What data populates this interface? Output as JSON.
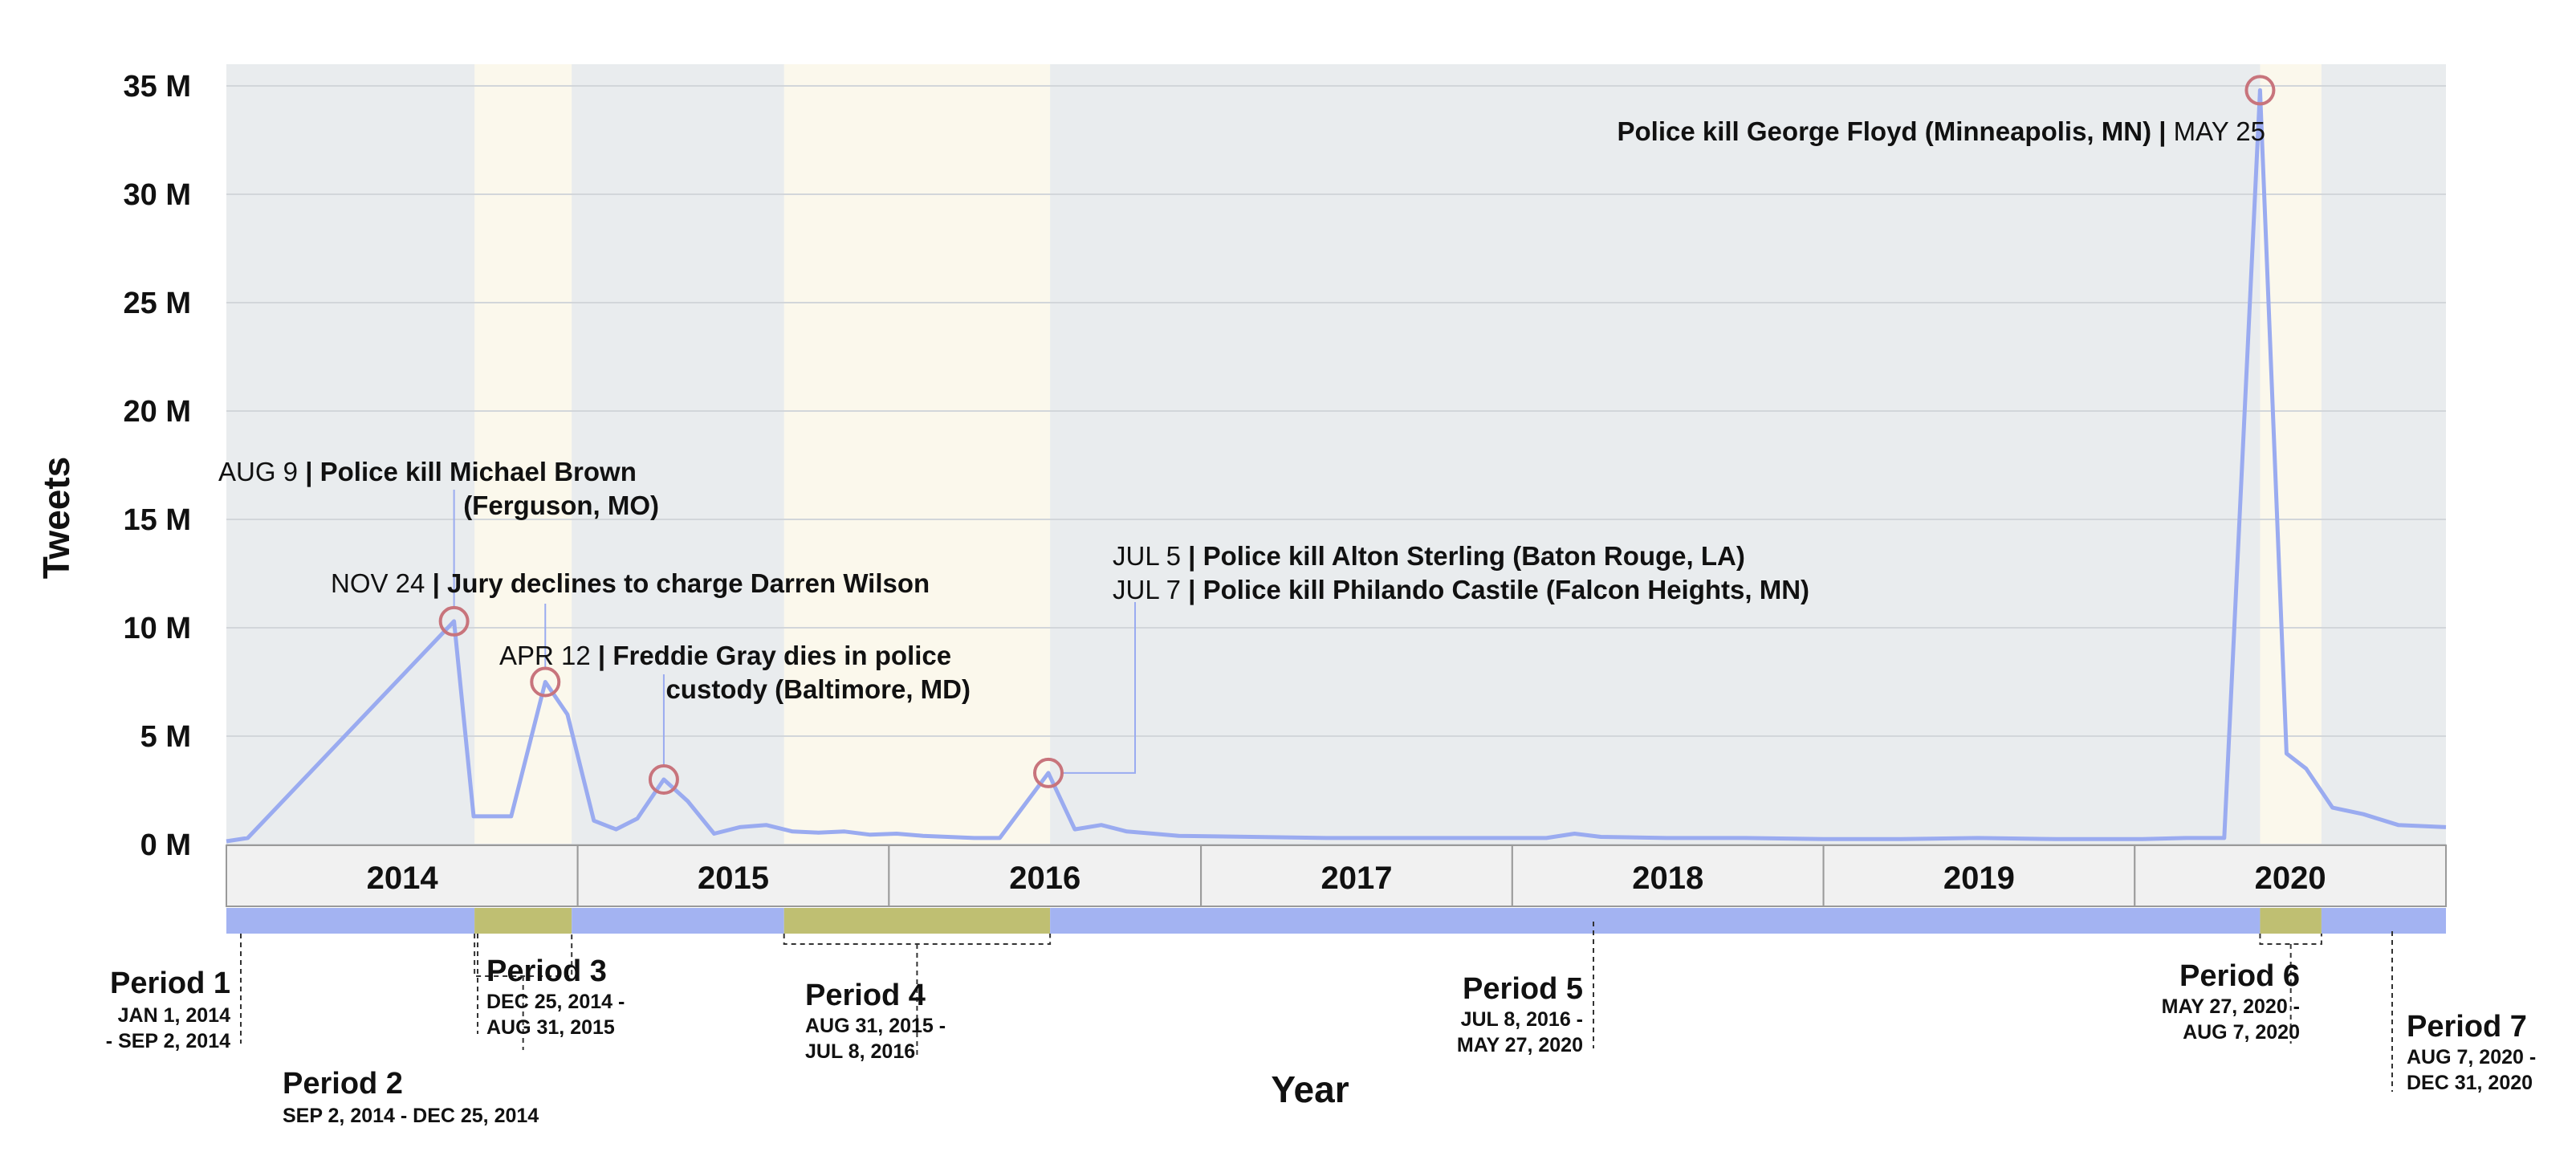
{
  "chart_data": {
    "type": "line",
    "title": "",
    "xlabel": "Year",
    "ylabel": "Tweets",
    "ylim": [
      0,
      36000000
    ],
    "xlim": [
      "2013-11-15",
      "2020-12-31"
    ],
    "y_ticks": [
      {
        "value": 0,
        "label": "0 M"
      },
      {
        "value": 5000000,
        "label": "5 M"
      },
      {
        "value": 10000000,
        "label": "10 M"
      },
      {
        "value": 15000000,
        "label": "15 M"
      },
      {
        "value": 20000000,
        "label": "20 M"
      },
      {
        "value": 25000000,
        "label": "25 M"
      },
      {
        "value": 30000000,
        "label": "30 M"
      },
      {
        "value": 35000000,
        "label": "35 M"
      }
    ],
    "grid": true,
    "line_color": "#9aabf0",
    "series": [
      {
        "name": "",
        "points": [
          [
            "2013-11-15",
            0.15
          ],
          [
            "2013-12-10",
            0.3
          ],
          [
            "2014-08-09",
            10.3
          ],
          [
            "2014-09-01",
            1.3
          ],
          [
            "2014-10-15",
            1.3
          ],
          [
            "2014-11-24",
            7.5
          ],
          [
            "2014-12-20",
            6.0
          ],
          [
            "2015-01-20",
            1.1
          ],
          [
            "2015-02-15",
            0.7
          ],
          [
            "2015-03-12",
            1.2
          ],
          [
            "2015-04-12",
            3.0
          ],
          [
            "2015-05-10",
            2.0
          ],
          [
            "2015-06-10",
            0.5
          ],
          [
            "2015-07-10",
            0.8
          ],
          [
            "2015-08-10",
            0.9
          ],
          [
            "2015-09-10",
            0.6
          ],
          [
            "2015-10-10",
            0.55
          ],
          [
            "2015-11-10",
            0.6
          ],
          [
            "2015-12-10",
            0.45
          ],
          [
            "2016-01-10",
            0.5
          ],
          [
            "2016-02-10",
            0.4
          ],
          [
            "2016-03-10",
            0.35
          ],
          [
            "2016-04-10",
            0.3
          ],
          [
            "2016-05-10",
            0.3
          ],
          [
            "2016-07-06",
            3.3
          ],
          [
            "2016-08-06",
            0.7
          ],
          [
            "2016-09-06",
            0.9
          ],
          [
            "2016-10-06",
            0.6
          ],
          [
            "2016-11-06",
            0.5
          ],
          [
            "2016-12-06",
            0.4
          ],
          [
            "2017-03-01",
            0.35
          ],
          [
            "2017-06-01",
            0.3
          ],
          [
            "2017-09-01",
            0.3
          ],
          [
            "2017-12-01",
            0.3
          ],
          [
            "2018-02-10",
            0.3
          ],
          [
            "2018-03-15",
            0.5
          ],
          [
            "2018-04-15",
            0.35
          ],
          [
            "2018-07-01",
            0.3
          ],
          [
            "2018-10-01",
            0.3
          ],
          [
            "2019-01-01",
            0.25
          ],
          [
            "2019-04-01",
            0.25
          ],
          [
            "2019-07-01",
            0.3
          ],
          [
            "2019-10-01",
            0.25
          ],
          [
            "2020-01-10",
            0.25
          ],
          [
            "2020-03-01",
            0.3
          ],
          [
            "2020-04-15",
            0.3
          ],
          [
            "2020-05-27",
            34.8
          ],
          [
            "2020-06-27",
            4.2
          ],
          [
            "2020-07-20",
            3.5
          ],
          [
            "2020-08-20",
            1.7
          ],
          [
            "2020-09-25",
            1.4
          ],
          [
            "2020-11-05",
            0.9
          ],
          [
            "2020-12-31",
            0.8
          ]
        ],
        "y_unit": "M"
      }
    ],
    "years": [
      "2014",
      "2015",
      "2016",
      "2017",
      "2018",
      "2019",
      "2020"
    ],
    "highlights": [
      {
        "date": "2014-08-09",
        "value": 10.3
      },
      {
        "date": "2014-11-24",
        "value": 7.5
      },
      {
        "date": "2015-04-12",
        "value": 3.0
      },
      {
        "date": "2016-07-06",
        "value": 3.3
      },
      {
        "date": "2020-05-27",
        "value": 34.8
      }
    ],
    "annotations": [
      {
        "date_label": "AUG 9",
        "lines": [
          "Police kill Michael Brown",
          "(Ferguson, MO)"
        ]
      },
      {
        "date_label": "NOV 24",
        "lines": [
          "Jury declines to charge Darren Wilson"
        ]
      },
      {
        "date_label": "APR 12",
        "lines": [
          "Freddie Gray dies in police",
          "custody (Baltimore, MD)"
        ]
      },
      {
        "date_label": "JUL 5",
        "lines": [
          "Police kill Alton Sterling (Baton Rouge, LA)"
        ]
      },
      {
        "date_label": "JUL 7",
        "lines": [
          "Police kill Philando Castile (Falcon Heights, MN)"
        ]
      },
      {
        "date_label": "MAY 25",
        "lines": [
          "Police kill George Floyd (Minneapolis, MN)"
        ]
      }
    ],
    "periods": [
      {
        "name": "Period 1",
        "start": "2014-01-01",
        "end": "2014-09-02",
        "range_lines": [
          "JAN 1, 2014",
          "- SEP 2, 2014"
        ],
        "color": "#a3b3f2"
      },
      {
        "name": "Period 2",
        "start": "2014-09-02",
        "end": "2014-12-25",
        "range_lines": [
          "SEP 2, 2014 - DEC 25, 2014"
        ],
        "color": "#bfbf72"
      },
      {
        "name": "Period 3",
        "start": "2014-12-25",
        "end": "2015-08-31",
        "range_lines": [
          "DEC 25, 2014 -",
          "AUG 31, 2015"
        ],
        "color": "#a3b3f2"
      },
      {
        "name": "Period 4",
        "start": "2015-08-31",
        "end": "2016-07-08",
        "range_lines": [
          "AUG 31, 2015 -",
          "JUL 8, 2016"
        ],
        "color": "#bfbf72"
      },
      {
        "name": "Period 5",
        "start": "2016-07-08",
        "end": "2020-05-27",
        "range_lines": [
          "JUL 8, 2016 -",
          "MAY 27, 2020"
        ],
        "color": "#a3b3f2"
      },
      {
        "name": "Period 6",
        "start": "2020-05-27",
        "end": "2020-08-07",
        "range_lines": [
          "MAY 27, 2020 -",
          "AUG 7, 2020"
        ],
        "color": "#bfbf72"
      },
      {
        "name": "Period 7",
        "start": "2020-08-07",
        "end": "2020-12-31",
        "range_lines": [
          "AUG 7, 2020 -",
          "DEC 31, 2020"
        ],
        "color": "#a3b3f2"
      }
    ]
  }
}
